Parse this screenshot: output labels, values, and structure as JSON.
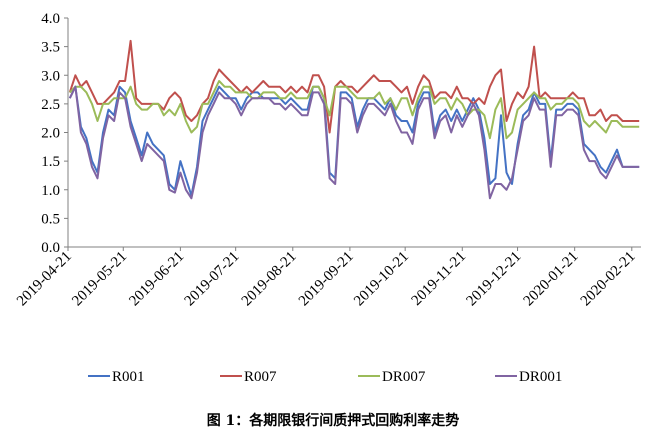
{
  "chart_data": {
    "type": "line",
    "title": "",
    "xlabel": "",
    "ylabel": "",
    "ylim": [
      0,
      4
    ],
    "yticks": [
      "0.0",
      "0.5",
      "1.0",
      "1.5",
      "2.0",
      "2.5",
      "3.0",
      "3.5",
      "4.0"
    ],
    "xticks": [
      "2019-04-21",
      "2019-05-21",
      "2019-06-21",
      "2019-07-21",
      "2019-08-21",
      "2019-09-21",
      "2019-10-21",
      "2019-11-21",
      "2019-12-21",
      "2020-01-21",
      "2020-02-21"
    ],
    "grid": false,
    "legend_position": "bottom",
    "x": [
      "2019-04-22",
      "2019-04-25",
      "2019-04-28",
      "2019-05-01",
      "2019-05-04",
      "2019-05-07",
      "2019-05-10",
      "2019-05-13",
      "2019-05-16",
      "2019-05-19",
      "2019-05-22",
      "2019-05-25",
      "2019-05-28",
      "2019-05-31",
      "2019-06-03",
      "2019-06-06",
      "2019-06-09",
      "2019-06-12",
      "2019-06-15",
      "2019-06-18",
      "2019-06-21",
      "2019-06-24",
      "2019-06-27",
      "2019-06-30",
      "2019-07-03",
      "2019-07-06",
      "2019-07-09",
      "2019-07-12",
      "2019-07-15",
      "2019-07-18",
      "2019-07-21",
      "2019-07-24",
      "2019-07-27",
      "2019-07-30",
      "2019-08-02",
      "2019-08-05",
      "2019-08-08",
      "2019-08-11",
      "2019-08-14",
      "2019-08-17",
      "2019-08-20",
      "2019-08-23",
      "2019-08-26",
      "2019-08-29",
      "2019-09-01",
      "2019-09-04",
      "2019-09-07",
      "2019-09-10",
      "2019-09-13",
      "2019-09-16",
      "2019-09-19",
      "2019-09-22",
      "2019-09-25",
      "2019-09-28",
      "2019-10-01",
      "2019-10-04",
      "2019-10-07",
      "2019-10-10",
      "2019-10-13",
      "2019-10-16",
      "2019-10-19",
      "2019-10-22",
      "2019-10-25",
      "2019-10-28",
      "2019-10-31",
      "2019-11-03",
      "2019-11-06",
      "2019-11-09",
      "2019-11-12",
      "2019-11-15",
      "2019-11-18",
      "2019-11-21",
      "2019-11-24",
      "2019-11-27",
      "2019-11-30",
      "2019-12-03",
      "2019-12-06",
      "2019-12-09",
      "2019-12-12",
      "2019-12-15",
      "2019-12-18",
      "2019-12-21",
      "2019-12-24",
      "2019-12-27",
      "2019-12-30",
      "2020-01-02",
      "2020-01-05",
      "2020-01-08",
      "2020-01-11",
      "2020-01-14",
      "2020-01-17",
      "2020-01-20",
      "2020-01-23",
      "2020-01-26",
      "2020-01-29",
      "2020-02-01",
      "2020-02-04",
      "2020-02-07",
      "2020-02-10",
      "2020-02-13",
      "2020-02-16",
      "2020-02-19",
      "2020-02-22",
      "2020-02-25"
    ],
    "series": [
      {
        "name": "R001",
        "color": "#4472C4",
        "values": [
          2.6,
          2.8,
          2.1,
          1.9,
          1.5,
          1.3,
          2.0,
          2.4,
          2.3,
          2.8,
          2.7,
          2.2,
          1.9,
          1.6,
          2.0,
          1.8,
          1.7,
          1.6,
          1.1,
          1.0,
          1.5,
          1.2,
          0.9,
          1.4,
          2.2,
          2.4,
          2.6,
          2.8,
          2.7,
          2.6,
          2.6,
          2.4,
          2.6,
          2.7,
          2.7,
          2.6,
          2.6,
          2.6,
          2.6,
          2.5,
          2.6,
          2.5,
          2.4,
          2.4,
          2.8,
          2.8,
          2.6,
          1.3,
          1.2,
          2.7,
          2.7,
          2.6,
          2.1,
          2.4,
          2.6,
          2.6,
          2.5,
          2.4,
          2.6,
          2.3,
          2.2,
          2.2,
          2.0,
          2.5,
          2.7,
          2.7,
          2.0,
          2.3,
          2.4,
          2.2,
          2.4,
          2.2,
          2.4,
          2.6,
          2.4,
          1.9,
          1.1,
          1.2,
          2.3,
          1.3,
          1.1,
          1.8,
          2.3,
          2.4,
          2.7,
          2.5,
          2.5,
          1.5,
          2.4,
          2.4,
          2.5,
          2.5,
          2.4,
          1.8,
          1.7,
          1.6,
          1.4,
          1.3,
          1.5,
          1.7,
          1.4,
          1.4,
          1.4,
          1.4
        ]
      },
      {
        "name": "R007",
        "color": "#C0504D",
        "values": [
          2.7,
          3.0,
          2.8,
          2.9,
          2.7,
          2.5,
          2.5,
          2.6,
          2.7,
          2.9,
          2.9,
          3.6,
          2.6,
          2.5,
          2.5,
          2.5,
          2.5,
          2.4,
          2.6,
          2.7,
          2.6,
          2.3,
          2.2,
          2.3,
          2.5,
          2.6,
          2.9,
          3.1,
          3.0,
          2.9,
          2.8,
          2.7,
          2.8,
          2.7,
          2.8,
          2.9,
          2.8,
          2.8,
          2.8,
          2.7,
          2.8,
          2.7,
          2.8,
          2.7,
          3.0,
          3.0,
          2.8,
          2.0,
          2.8,
          2.9,
          2.8,
          2.8,
          2.7,
          2.8,
          2.9,
          3.0,
          2.9,
          2.9,
          2.9,
          2.8,
          2.7,
          2.8,
          2.5,
          2.8,
          3.0,
          2.9,
          2.6,
          2.7,
          2.7,
          2.6,
          2.8,
          2.6,
          2.6,
          2.5,
          2.6,
          2.5,
          2.8,
          3.0,
          3.1,
          2.2,
          2.5,
          2.7,
          2.6,
          2.8,
          3.5,
          2.6,
          2.7,
          2.6,
          2.6,
          2.6,
          2.6,
          2.7,
          2.6,
          2.6,
          2.3,
          2.3,
          2.4,
          2.2,
          2.3,
          2.3,
          2.2,
          2.2,
          2.2,
          2.2
        ]
      },
      {
        "name": "DR007",
        "color": "#9BBB59",
        "values": [
          2.7,
          2.8,
          2.8,
          2.7,
          2.5,
          2.2,
          2.5,
          2.5,
          2.6,
          2.6,
          2.6,
          2.8,
          2.5,
          2.4,
          2.4,
          2.5,
          2.5,
          2.3,
          2.4,
          2.3,
          2.5,
          2.2,
          2.0,
          2.1,
          2.5,
          2.5,
          2.7,
          2.9,
          2.8,
          2.8,
          2.7,
          2.7,
          2.7,
          2.6,
          2.6,
          2.7,
          2.7,
          2.7,
          2.6,
          2.6,
          2.7,
          2.6,
          2.6,
          2.6,
          2.8,
          2.8,
          2.6,
          2.3,
          2.8,
          2.8,
          2.8,
          2.7,
          2.6,
          2.6,
          2.6,
          2.6,
          2.7,
          2.5,
          2.6,
          2.4,
          2.6,
          2.6,
          2.3,
          2.6,
          2.8,
          2.8,
          2.5,
          2.6,
          2.6,
          2.4,
          2.6,
          2.5,
          2.3,
          2.4,
          2.4,
          2.3,
          1.9,
          2.4,
          2.6,
          1.9,
          2.0,
          2.4,
          2.5,
          2.6,
          2.7,
          2.6,
          2.6,
          2.4,
          2.5,
          2.5,
          2.6,
          2.6,
          2.5,
          2.2,
          2.1,
          2.2,
          2.1,
          2.0,
          2.2,
          2.2,
          2.1,
          2.1,
          2.1,
          2.1
        ]
      },
      {
        "name": "DR001",
        "color": "#8064A2",
        "values": [
          2.6,
          2.8,
          2.0,
          1.8,
          1.4,
          1.2,
          1.9,
          2.3,
          2.2,
          2.7,
          2.6,
          2.1,
          1.8,
          1.5,
          1.8,
          1.7,
          1.6,
          1.5,
          1.0,
          0.95,
          1.3,
          1.0,
          0.85,
          1.3,
          2.0,
          2.3,
          2.5,
          2.7,
          2.6,
          2.6,
          2.5,
          2.3,
          2.5,
          2.6,
          2.6,
          2.6,
          2.6,
          2.5,
          2.5,
          2.4,
          2.5,
          2.4,
          2.3,
          2.3,
          2.7,
          2.7,
          2.5,
          1.2,
          1.1,
          2.6,
          2.6,
          2.5,
          2.0,
          2.3,
          2.5,
          2.5,
          2.4,
          2.3,
          2.5,
          2.2,
          2.0,
          2.0,
          1.8,
          2.4,
          2.6,
          2.6,
          1.9,
          2.2,
          2.3,
          2.0,
          2.3,
          2.1,
          2.3,
          2.5,
          2.3,
          1.7,
          0.85,
          1.1,
          1.1,
          1.0,
          1.2,
          1.7,
          2.2,
          2.3,
          2.6,
          2.4,
          2.4,
          1.4,
          2.3,
          2.3,
          2.4,
          2.4,
          2.3,
          1.7,
          1.5,
          1.5,
          1.3,
          1.2,
          1.4,
          1.6,
          1.4,
          1.4,
          1.4,
          1.4
        ]
      }
    ]
  },
  "caption": "图 1：各期限银行间质押式回购利率走势"
}
